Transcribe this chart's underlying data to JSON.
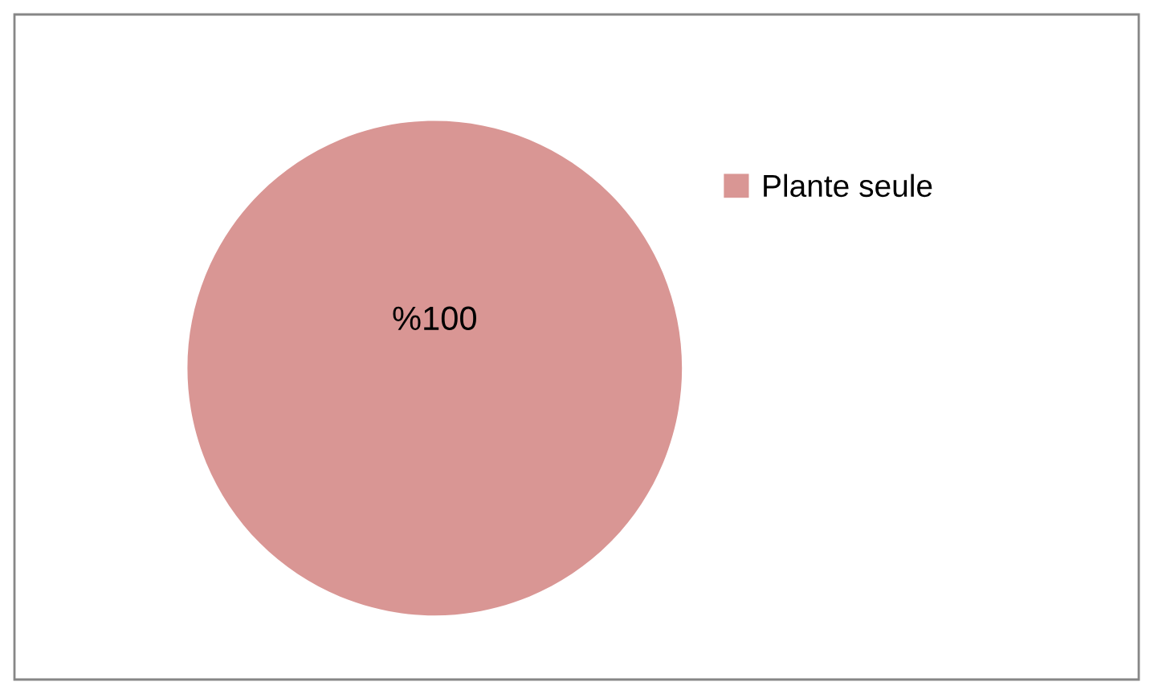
{
  "chart_data": {
    "type": "pie",
    "categories": [
      "Plante seule"
    ],
    "values": [
      100
    ],
    "colors": [
      "#d99694"
    ],
    "value_labels": [
      "%100"
    ],
    "legend": "right"
  }
}
